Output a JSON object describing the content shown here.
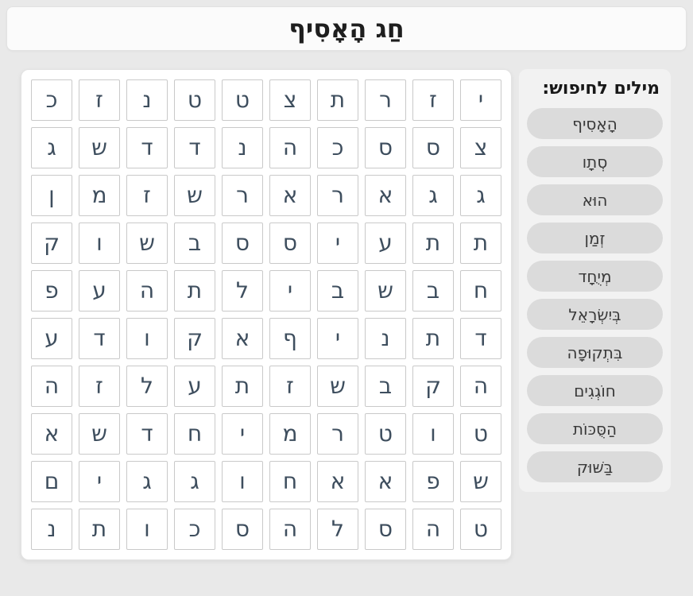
{
  "title": "חַג הָאָסִיף",
  "grid": {
    "rows": [
      [
        "כ",
        "ז",
        "נ",
        "ט",
        "ט",
        "צ",
        "ת",
        "ר",
        "ז",
        "י"
      ],
      [
        "ג",
        "ש",
        "ד",
        "ד",
        "נ",
        "ה",
        "כ",
        "ס",
        "ס",
        "צ"
      ],
      [
        "ן",
        "מ",
        "ז",
        "ש",
        "ר",
        "א",
        "ר",
        "א",
        "ג",
        "ג"
      ],
      [
        "ק",
        "ו",
        "ש",
        "ב",
        "ס",
        "ס",
        "י",
        "ע",
        "ת",
        "ת"
      ],
      [
        "פ",
        "ע",
        "ה",
        "ת",
        "ל",
        "י",
        "ב",
        "ש",
        "ב",
        "ח"
      ],
      [
        "ע",
        "ד",
        "ו",
        "ק",
        "א",
        "ף",
        "י",
        "נ",
        "ת",
        "ד"
      ],
      [
        "ה",
        "ז",
        "ל",
        "ע",
        "ת",
        "ז",
        "ש",
        "ב",
        "ק",
        "ה"
      ],
      [
        "א",
        "ש",
        "ד",
        "ח",
        "י",
        "מ",
        "ר",
        "ט",
        "ו",
        "ט"
      ],
      [
        "ם",
        "י",
        "ג",
        "ג",
        "ו",
        "ח",
        "א",
        "א",
        "פ",
        "ש"
      ],
      [
        "נ",
        "ת",
        "ו",
        "כ",
        "ס",
        "ה",
        "ל",
        "ס",
        "ה",
        "ט"
      ]
    ]
  },
  "word_list": {
    "heading": "מילים לחיפוש:",
    "words": [
      "הָאָסִיף",
      "סְתָו",
      "הוּא",
      "זְמַן",
      "מְיֻחָד",
      "בְּיִשְׂרָאֵל",
      "בִּתְקוּפָה",
      "חוֹגְגִים",
      "הַסֻּכּוֹת",
      "בַּשּׁוּק"
    ]
  },
  "colors": {
    "page_bg": "#e9e9e9",
    "titlebar_bg": "#fbfbfb",
    "titlebar_border": "#e2e2e2",
    "card_bg": "#ffffff",
    "card_border": "#e3e3e3",
    "cell_border": "#c9c9c9",
    "letter_color": "#3e4e5e",
    "sidebar_bg": "#f2f2f2",
    "chip_bg": "#dbdbdb",
    "chip_text": "#3a3a3a",
    "title_text": "#1e1e1e"
  }
}
